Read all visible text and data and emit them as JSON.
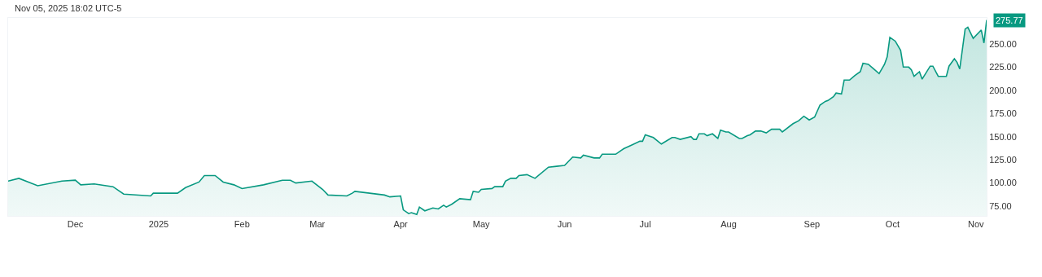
{
  "chart_data": {
    "type": "area",
    "x": [
      "2024-11-06",
      "2024-11-10",
      "2024-11-17",
      "2024-11-26",
      "2024-12-01",
      "2024-12-03",
      "2024-12-08",
      "2024-12-15",
      "2024-12-19",
      "2024-12-29",
      "2024-12-30",
      "2025-01-08",
      "2025-01-11",
      "2025-01-16",
      "2025-01-18",
      "2025-01-22",
      "2025-01-25",
      "2025-01-29",
      "2025-02-01",
      "2025-02-09",
      "2025-02-16",
      "2025-02-19",
      "2025-02-21",
      "2025-02-27",
      "2025-03-03",
      "2025-03-05",
      "2025-03-12",
      "2025-03-14",
      "2025-03-15",
      "2025-03-26",
      "2025-03-28",
      "2025-04-01",
      "2025-04-02",
      "2025-04-04",
      "2025-04-05",
      "2025-04-07",
      "2025-04-08",
      "2025-04-10",
      "2025-04-13",
      "2025-04-15",
      "2025-04-17",
      "2025-04-18",
      "2025-04-20",
      "2025-04-23",
      "2025-04-27",
      "2025-04-28",
      "2025-04-30",
      "2025-05-01",
      "2025-05-05",
      "2025-05-06",
      "2025-05-09",
      "2025-05-10",
      "2025-05-12",
      "2025-05-14",
      "2025-05-15",
      "2025-05-18",
      "2025-05-21",
      "2025-05-26",
      "2025-05-29",
      "2025-06-01",
      "2025-06-04",
      "2025-06-07",
      "2025-06-08",
      "2025-06-12",
      "2025-06-14",
      "2025-06-15",
      "2025-06-20",
      "2025-06-23",
      "2025-06-26",
      "2025-06-29",
      "2025-06-30",
      "2025-07-01",
      "2025-07-04",
      "2025-07-07",
      "2025-07-11",
      "2025-07-12",
      "2025-07-14",
      "2025-07-18",
      "2025-07-19",
      "2025-07-20",
      "2025-07-21",
      "2025-07-23",
      "2025-07-24",
      "2025-07-26",
      "2025-07-28",
      "2025-07-29",
      "2025-07-31",
      "2025-08-01",
      "2025-08-05",
      "2025-08-06",
      "2025-08-08",
      "2025-08-09",
      "2025-08-11",
      "2025-08-13",
      "2025-08-15",
      "2025-08-17",
      "2025-08-20",
      "2025-08-21",
      "2025-08-25",
      "2025-08-27",
      "2025-08-29",
      "2025-08-31",
      "2025-09-02",
      "2025-09-04",
      "2025-09-06",
      "2025-09-07",
      "2025-09-09",
      "2025-09-10",
      "2025-09-12",
      "2025-09-13",
      "2025-09-15",
      "2025-09-17",
      "2025-09-19",
      "2025-09-20",
      "2025-09-22",
      "2025-09-24",
      "2025-09-26",
      "2025-09-28",
      "2025-09-29",
      "2025-09-30",
      "2025-10-02",
      "2025-10-04",
      "2025-10-05",
      "2025-10-07",
      "2025-10-08",
      "2025-10-09",
      "2025-10-11",
      "2025-10-12",
      "2025-10-15",
      "2025-10-16",
      "2025-10-18",
      "2025-10-21",
      "2025-10-22",
      "2025-10-24",
      "2025-10-25",
      "2025-10-26",
      "2025-10-28",
      "2025-10-29",
      "2025-10-31",
      "2025-11-03",
      "2025-11-04",
      "2025-11-05"
    ],
    "series": [
      {
        "color": "#089981",
        "values": [
          102,
          105,
          97,
          102,
          103,
          98,
          99,
          96,
          88,
          86,
          89,
          89,
          95,
          101,
          108,
          108,
          101,
          98,
          94,
          98,
          103,
          103,
          100,
          102,
          93,
          87,
          86,
          89,
          91,
          87,
          85,
          86,
          71,
          67,
          68,
          66,
          74,
          70,
          73,
          72,
          76,
          74,
          77,
          83,
          82,
          91,
          90,
          93,
          94,
          96,
          96,
          102,
          105,
          105,
          108,
          109,
          105,
          117,
          118,
          119,
          128,
          127,
          130,
          127,
          127,
          131,
          131,
          137,
          141,
          145,
          145,
          152,
          149,
          142,
          149,
          149,
          147,
          150,
          147,
          147,
          153,
          153,
          151,
          153,
          148,
          157,
          155,
          155,
          148,
          148,
          151,
          152,
          156,
          156,
          154,
          158,
          158,
          155,
          164,
          167,
          172,
          168,
          171,
          184,
          188,
          189,
          193,
          197,
          196,
          211,
          211,
          216,
          220,
          229,
          228,
          223,
          218,
          228,
          236,
          257,
          253,
          243,
          225,
          225,
          222,
          215,
          220,
          212,
          226,
          226,
          215,
          215,
          226,
          234,
          230,
          223,
          266,
          268,
          256,
          265,
          251,
          275.77
        ]
      }
    ],
    "xlim": [
      "2024-11-06",
      "2025-11-05"
    ],
    "xticks": [
      {
        "value": "2024-12-01",
        "label": "Dec"
      },
      {
        "value": "2025-01-01",
        "label": "2025"
      },
      {
        "value": "2025-02-01",
        "label": "Feb"
      },
      {
        "value": "2025-03-01",
        "label": "Mar"
      },
      {
        "value": "2025-04-01",
        "label": "Apr"
      },
      {
        "value": "2025-05-01",
        "label": "May"
      },
      {
        "value": "2025-06-01",
        "label": "Jun"
      },
      {
        "value": "2025-07-01",
        "label": "Jul"
      },
      {
        "value": "2025-08-01",
        "label": "Aug"
      },
      {
        "value": "2025-09-01",
        "label": "Sep"
      },
      {
        "value": "2025-10-01",
        "label": "Oct"
      },
      {
        "value": "2025-11-01",
        "label": "Nov"
      }
    ],
    "ylim": [
      64.5,
      278
    ],
    "yticks": [
      {
        "value": 75,
        "label": "75.00"
      },
      {
        "value": 100,
        "label": "100.00"
      },
      {
        "value": 125,
        "label": "125.00"
      },
      {
        "value": 150,
        "label": "150.00"
      },
      {
        "value": 175,
        "label": "175.00"
      },
      {
        "value": 200,
        "label": "200.00"
      },
      {
        "value": 225,
        "label": "225.00"
      },
      {
        "value": 250,
        "label": "250.00"
      }
    ],
    "annotations": [
      "Nov 05, 2025 18:02 UTC-5",
      {
        "text": "275.77",
        "x": "2025-11-05",
        "y": 275.77
      }
    ]
  }
}
